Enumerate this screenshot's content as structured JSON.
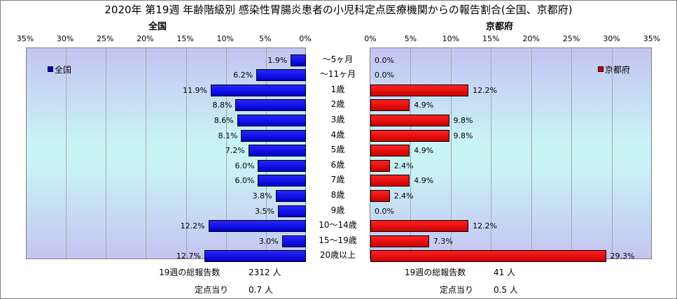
{
  "chart_data": {
    "type": "bar",
    "orientation": "horizontal",
    "title": "2020年 第19週 年齢階級別 感染性胃腸炎患者の小児科定点医療機関からの報告割合(全国、京都府)",
    "categories": [
      "～5ヶ月",
      "～11ヶ月",
      "1歳",
      "2歳",
      "3歳",
      "4歳",
      "5歳",
      "6歳",
      "7歳",
      "8歳",
      "9歳",
      "10～14歳",
      "15～19歳",
      "20歳以上"
    ],
    "panels": [
      {
        "name": "全国",
        "direction": "left",
        "legend": "全国",
        "legend_position": "top-left",
        "color": "#0000cc",
        "xlim": [
          0,
          35
        ],
        "ticks": [
          "35%",
          "30%",
          "25%",
          "20%",
          "15%",
          "10%",
          "5%",
          "0%"
        ],
        "values": [
          1.9,
          6.2,
          11.9,
          8.8,
          8.6,
          8.1,
          7.2,
          6.0,
          6.0,
          3.8,
          3.5,
          12.2,
          3.0,
          12.7
        ],
        "labels": [
          "1.9%",
          "6.2%",
          "11.9%",
          "8.8%",
          "8.6%",
          "8.1%",
          "7.2%",
          "6.0%",
          "6.0%",
          "3.8%",
          "3.5%",
          "12.2%",
          "3.0%",
          "12.7%"
        ]
      },
      {
        "name": "京都府",
        "direction": "right",
        "legend": "京都府",
        "legend_position": "top-right",
        "color": "#cc0000",
        "xlim": [
          0,
          35
        ],
        "ticks": [
          "0%",
          "5%",
          "10%",
          "15%",
          "20%",
          "25%",
          "30%",
          "35%"
        ],
        "values": [
          0.0,
          0.0,
          12.2,
          4.9,
          9.8,
          9.8,
          4.9,
          2.4,
          4.9,
          2.4,
          0.0,
          12.2,
          7.3,
          29.3
        ],
        "labels": [
          "0.0%",
          "0.0%",
          "12.2%",
          "4.9%",
          "9.8%",
          "9.8%",
          "4.9%",
          "2.4%",
          "4.9%",
          "2.4%",
          "0.0%",
          "12.2%",
          "7.3%",
          "29.3%"
        ]
      }
    ],
    "grid": true
  },
  "footer": {
    "national": {
      "reports_label": "19週の総報告数",
      "reports_value": "2312 人",
      "per_site_label": "定点当り",
      "per_site_value": "0.7 人"
    },
    "kyoto": {
      "reports_label": "19週の総報告数",
      "reports_value": "41 人",
      "per_site_label": "定点当り",
      "per_site_value": "0.5 人"
    }
  }
}
